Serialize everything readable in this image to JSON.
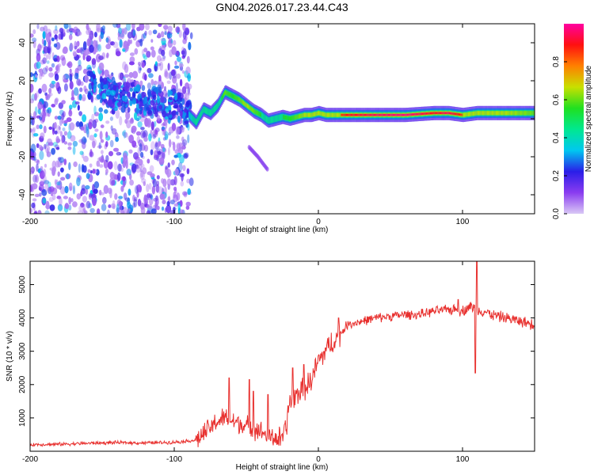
{
  "title": "GN04.2026.017.23.44.C43",
  "chart_data": [
    {
      "type": "heatmap",
      "xlabel": "Height of straight line (km)",
      "ylabel": "Frequency (Hz)",
      "xlim": [
        -200,
        150
      ],
      "ylim": [
        -50,
        50
      ],
      "xticks": [
        -200,
        -100,
        0,
        100
      ],
      "yticks": [
        -40,
        -20,
        0,
        20,
        40
      ],
      "colorbar": {
        "label": "Normalized spectral amplitude",
        "range": [
          0,
          1
        ],
        "ticks": [
          "0.0",
          "0.2",
          "0.4",
          "0.6",
          "0.8"
        ],
        "tick_values": [
          0.0,
          0.2,
          0.4,
          0.6,
          0.8
        ],
        "colormap": [
          "#d9c8f5",
          "#8a3cf0",
          "#2a1ee8",
          "#00c8f0",
          "#00e890",
          "#20e020",
          "#c8e000",
          "#ff8000",
          "#ff1010",
          "#ff00a0"
        ]
      },
      "scatter_region": {
        "x_range": [
          -200,
          -88
        ],
        "freq_range": [
          -50,
          50
        ]
      },
      "noise_band": {
        "x": [
          -160,
          -140,
          -120,
          -100,
          -90
        ],
        "freq": [
          18,
          12,
          10,
          7,
          4
        ]
      },
      "ridge": {
        "x": [
          -90,
          -85,
          -80,
          -75,
          -70,
          -65,
          -60,
          -55,
          -50,
          -45,
          -40,
          -35,
          -30,
          -25,
          -20,
          -15,
          -10,
          -5,
          0,
          5,
          10,
          20,
          40,
          60,
          80,
          90,
          100,
          110,
          120,
          130,
          150
        ],
        "freq": [
          2,
          -2,
          5,
          3,
          7,
          14,
          12,
          10,
          7,
          4,
          2,
          -1,
          0,
          1,
          0,
          1,
          2,
          2,
          3,
          2,
          2,
          2,
          2,
          2,
          3,
          3,
          2,
          3,
          3,
          3,
          3
        ],
        "amp": [
          0.35,
          0.5,
          0.45,
          0.55,
          0.5,
          0.6,
          0.55,
          0.6,
          0.65,
          0.6,
          0.55,
          0.5,
          0.5,
          0.55,
          0.55,
          0.6,
          0.65,
          0.65,
          0.7,
          0.75,
          0.8,
          0.9,
          0.95,
          0.98,
          0.9,
          0.95,
          0.85,
          0.75,
          0.7,
          0.65,
          0.6
        ]
      },
      "side_branch": {
        "x": [
          -48,
          -42,
          -38,
          -35
        ],
        "freq": [
          -15,
          -20,
          -24,
          -27
        ]
      }
    },
    {
      "type": "line",
      "xlabel": "Height of straight line (km)",
      "ylabel": "SNR (10 * v/v)",
      "xlim": [
        -200,
        150
      ],
      "ylim": [
        0,
        5700
      ],
      "xticks": [
        -200,
        -100,
        0,
        100
      ],
      "yticks": [
        1000,
        2000,
        3000,
        4000,
        5000
      ],
      "color": "#e8302e",
      "series": {
        "name": "SNR",
        "x": [
          -200,
          -180,
          -160,
          -140,
          -120,
          -100,
          -85,
          -80,
          -75,
          -70,
          -65,
          -60,
          -55,
          -50,
          -45,
          -40,
          -35,
          -30,
          -25,
          -22,
          -20,
          -15,
          -10,
          -5,
          0,
          5,
          10,
          15,
          20,
          25,
          30,
          40,
          50,
          60,
          70,
          80,
          90,
          95,
          100,
          105,
          108,
          110,
          115,
          120,
          130,
          140,
          150
        ],
        "values": [
          200,
          210,
          240,
          260,
          250,
          270,
          330,
          500,
          700,
          900,
          1000,
          900,
          850,
          750,
          700,
          600,
          450,
          400,
          350,
          800,
          1500,
          1700,
          1900,
          2100,
          2700,
          3000,
          3300,
          3500,
          3800,
          3850,
          3900,
          4000,
          4050,
          4100,
          4100,
          4200,
          4250,
          4250,
          4200,
          4350,
          4300,
          4250,
          4200,
          4100,
          4000,
          3900,
          3800
        ],
        "spikes": [
          {
            "x": -62,
            "value": 2200
          },
          {
            "x": -48,
            "value": 2150
          },
          {
            "x": -45,
            "value": 1800
          },
          {
            "x": -35,
            "value": 1700
          },
          {
            "x": -18,
            "value": 2500
          },
          {
            "x": -10,
            "value": 2600
          },
          {
            "x": 5,
            "value": 3100
          },
          {
            "x": 14,
            "value": 4000
          },
          {
            "x": 97,
            "value": 4550
          },
          {
            "x": 110,
            "value": 5750
          },
          {
            "x": 109,
            "value": 2350
          }
        ]
      }
    }
  ]
}
